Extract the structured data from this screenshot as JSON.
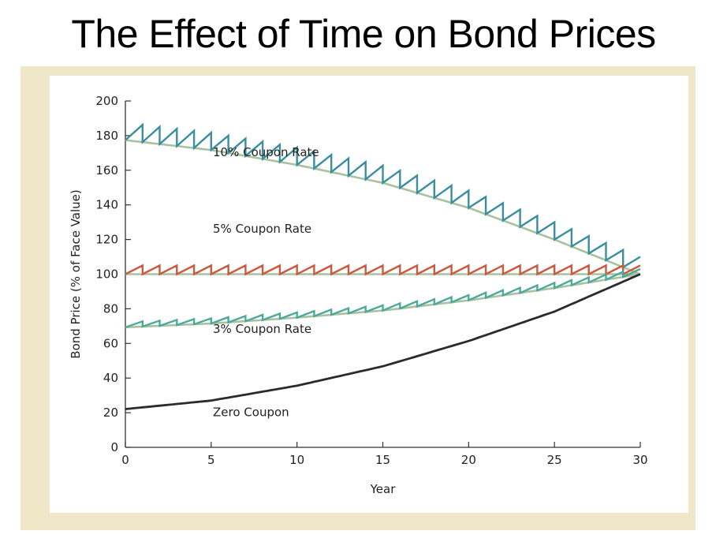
{
  "slide": {
    "title": "The Effect of Time on Bond Prices"
  },
  "chart_data": {
    "type": "line",
    "title": "",
    "xlabel": "Year",
    "ylabel": "Bond Price (% of Face Value)",
    "xlim": [
      0,
      30
    ],
    "ylim": [
      0,
      200
    ],
    "xticks": [
      0,
      5,
      10,
      15,
      20,
      25,
      30
    ],
    "yticks": [
      0,
      20,
      40,
      60,
      80,
      100,
      120,
      140,
      160,
      180,
      200
    ],
    "grid": false,
    "colors": {
      "coupon10": "#3a8e9e",
      "coupon5": "#cc5a3e",
      "coupon3": "#4fa99a",
      "zero": "#2b2b2b",
      "smooth": "#a8c2a0",
      "axis": "#333333"
    },
    "series": [
      {
        "name": "10% Coupon Rate",
        "style": "sawtooth",
        "coupon_per_year": 10,
        "clean_values": [
          {
            "x": 0,
            "y": 177.4
          },
          {
            "x": 5,
            "y": 171.7
          },
          {
            "x": 10,
            "y": 163.1
          },
          {
            "x": 15,
            "y": 152.7
          },
          {
            "x": 20,
            "y": 138.3
          },
          {
            "x": 25,
            "y": 120.0
          },
          {
            "x": 30,
            "y": 100
          }
        ]
      },
      {
        "name": "5% Coupon Rate",
        "style": "sawtooth",
        "coupon_per_year": 5,
        "clean_values": [
          {
            "x": 0,
            "y": 100
          },
          {
            "x": 30,
            "y": 100
          }
        ]
      },
      {
        "name": "3% Coupon Rate",
        "style": "sawtooth",
        "coupon_per_year": 3,
        "clean_values": [
          {
            "x": 0,
            "y": 69.3
          },
          {
            "x": 5,
            "y": 71.5
          },
          {
            "x": 10,
            "y": 74.9
          },
          {
            "x": 15,
            "y": 79.0
          },
          {
            "x": 20,
            "y": 84.9
          },
          {
            "x": 25,
            "y": 92.0
          },
          {
            "x": 30,
            "y": 100
          }
        ]
      },
      {
        "name": "Zero Coupon",
        "style": "smooth",
        "clean_values": [
          {
            "x": 0,
            "y": 22.1
          },
          {
            "x": 5,
            "y": 27.0
          },
          {
            "x": 10,
            "y": 35.6
          },
          {
            "x": 15,
            "y": 46.8
          },
          {
            "x": 20,
            "y": 61.4
          },
          {
            "x": 25,
            "y": 78.4
          },
          {
            "x": 30,
            "y": 100
          }
        ]
      }
    ]
  }
}
